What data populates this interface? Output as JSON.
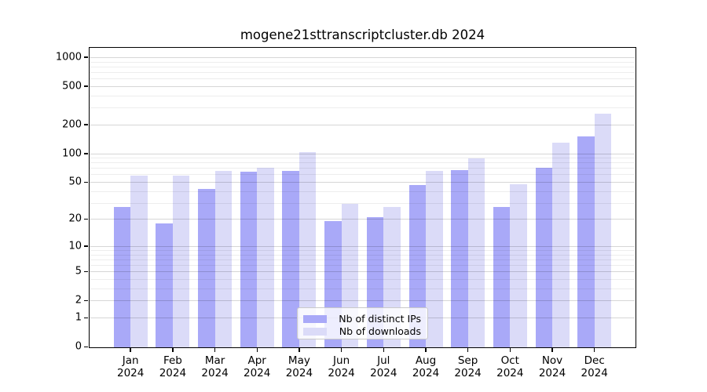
{
  "title": "mogene21sttranscriptcluster.db 2024",
  "colors": {
    "distinct_ips_bar": "#a9a9f8",
    "downloads_bar": "#dbdbf8",
    "spine": "#000000",
    "grid_major": "#d6d6d6",
    "grid_minor": "#ececec"
  },
  "legend": {
    "items": [
      {
        "label": "Nb of distinct IPs",
        "color": "#a9a9f8"
      },
      {
        "label": "Nb of downloads",
        "color": "#dbdbf8"
      }
    ],
    "position": "lower center inside plot"
  },
  "chart_data": {
    "type": "bar",
    "title": "mogene21sttranscriptcluster.db 2024",
    "xlabel": "",
    "ylabel": "",
    "scale": "log(1+y)",
    "grid": "horizontal major+minor",
    "categories": [
      "Jan",
      "Feb",
      "Mar",
      "Apr",
      "May",
      "Jun",
      "Jul",
      "Aug",
      "Sep",
      "Oct",
      "Nov",
      "Dec"
    ],
    "year_label": "2024",
    "series": [
      {
        "name": "Nb of distinct IPs",
        "color": "#a9a9f8",
        "values": [
          27,
          18,
          42,
          64,
          65,
          19,
          21,
          46,
          67,
          27,
          70,
          150
        ]
      },
      {
        "name": "Nb of downloads",
        "color": "#dbdbf8",
        "values": [
          58,
          58,
          65,
          70,
          102,
          29,
          27,
          65,
          88,
          47,
          128,
          260
        ]
      }
    ],
    "y_major_ticks": [
      0,
      1,
      2,
      5,
      10,
      20,
      50,
      100,
      200,
      500,
      1000
    ],
    "y_minor_ticks": [
      3,
      4,
      6,
      7,
      8,
      9,
      30,
      40,
      60,
      70,
      80,
      90,
      300,
      400,
      600,
      700,
      800,
      900
    ],
    "ylim": [
      0,
      1000
    ]
  }
}
